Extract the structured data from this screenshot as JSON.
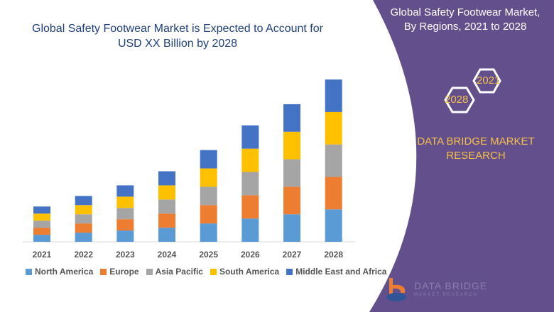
{
  "header": {
    "title_line1": "Global Safety Footwear Market is Expected to Account for",
    "title_line2": "USD XX Billion by 2028"
  },
  "side_panel": {
    "title_line1": "Global Safety Footwear Market,",
    "title_line2": "By Regions, 2021 to 2028",
    "hex_top": "2021",
    "hex_bottom": "2028",
    "brand_line1": "DATA BRIDGE MARKET",
    "brand_line2": "RESEARCH",
    "logo_text": "DATA BRIDGE",
    "logo_sub": "MARKET RESEARCH",
    "color": "#634f8c",
    "accent": "#f5c04a"
  },
  "chart_data": {
    "type": "bar",
    "stacked": true,
    "categories": [
      "2021",
      "2022",
      "2023",
      "2024",
      "2025",
      "2026",
      "2027",
      "2028"
    ],
    "series": [
      {
        "name": "North America",
        "color": "#5b9bd5",
        "values": [
          1.0,
          1.3,
          1.6,
          2.0,
          2.6,
          3.3,
          3.9,
          4.6
        ]
      },
      {
        "name": "Europe",
        "color": "#ed7d31",
        "values": [
          1.0,
          1.3,
          1.6,
          2.0,
          2.6,
          3.3,
          3.9,
          4.6
        ]
      },
      {
        "name": "Asia Pacific",
        "color": "#a5a5a5",
        "values": [
          1.0,
          1.3,
          1.6,
          2.0,
          2.6,
          3.3,
          3.9,
          4.6
        ]
      },
      {
        "name": "South America",
        "color": "#ffc000",
        "values": [
          1.0,
          1.3,
          1.6,
          2.0,
          2.6,
          3.3,
          3.9,
          4.6
        ]
      },
      {
        "name": "Middle East and Africa",
        "color": "#4472c4",
        "values": [
          1.0,
          1.3,
          1.6,
          2.0,
          2.6,
          3.3,
          3.9,
          4.6
        ]
      }
    ],
    "yaxis_visible": false,
    "grid": false,
    "legend_position": "bottom"
  }
}
